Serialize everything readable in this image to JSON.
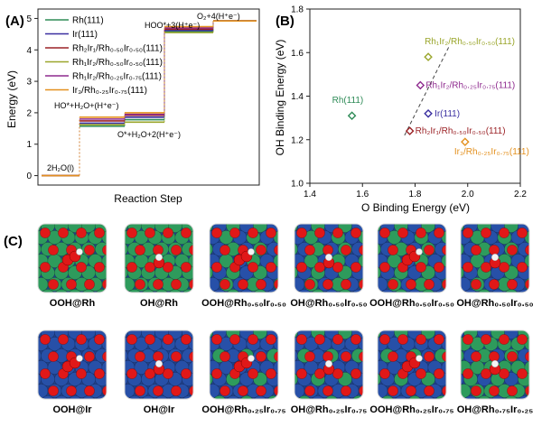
{
  "chart_data": [
    {
      "panel": "(A)",
      "type": "line",
      "title": "",
      "xlabel": "Reaction Step",
      "ylabel": "Energy (eV)",
      "ylim": [
        -0.3,
        5.3
      ],
      "yticks": [
        "0",
        "1",
        "2",
        "3",
        "4",
        "5"
      ],
      "steps": [
        "2H2O(l)",
        "HO*+H2O+(H+e-)",
        "O*+H2O+2(H+e-)",
        "HOO*+3(H+e-)",
        "O2+4(H+e-)"
      ],
      "step_labels": {
        "s0": "2H₂O(l)",
        "s1": "HO*+H₂O+(H⁺e⁻)",
        "s2": "O*+H₂O+2(H⁺e⁻)",
        "s3": "HOO*+3(H⁺e⁻)",
        "s4": "O₂+4(H⁺e⁻)"
      },
      "legend": [
        {
          "text": "Rh(111)",
          "color": "#2e8b57"
        },
        {
          "text": "Ir(111)",
          "color": "#3a2fa0"
        },
        {
          "text": "Rh₂Ir₁/Rh₀.₅₀Ir₀.₅₀(111)",
          "color": "#9b2226"
        },
        {
          "text": "Rh₁Ir₂/Rh₀.₅₀Ir₀.₅₀(111)",
          "color": "#9aa62b"
        },
        {
          "text": "Rh₁Ir₂/Rh₀.₂₅Ir₀.₇₅(111)",
          "color": "#8e2a8e"
        },
        {
          "text": "Ir₃/Rh₀.₂₅Ir₀.₇₅(111)",
          "color": "#e3901e"
        }
      ],
      "series": [
        {
          "name": "Rh(111)",
          "color": "#2e8b57",
          "values": [
            0,
            1.57,
            1.78,
            4.58,
            4.92
          ]
        },
        {
          "name": "Ir(111)",
          "color": "#3a2fa0",
          "values": [
            0,
            1.67,
            1.86,
            4.62,
            4.92
          ]
        },
        {
          "name": "Rh2Ir1/Rh0.50Ir0.50(111)",
          "color": "#9b2226",
          "values": [
            0,
            1.74,
            1.92,
            4.66,
            4.92
          ]
        },
        {
          "name": "Rh1Ir2/Rh0.50Ir0.50(111)",
          "color": "#9aa62b",
          "values": [
            0,
            1.62,
            1.7,
            4.55,
            4.92
          ]
        },
        {
          "name": "Rh1Ir2/Rh0.25Ir0.75(111)",
          "color": "#8e2a8e",
          "values": [
            0,
            1.8,
            1.95,
            4.7,
            4.92
          ]
        },
        {
          "name": "Ir3/Rh0.25Ir0.75(111)",
          "color": "#e3901e",
          "values": [
            0,
            1.86,
            2.0,
            4.74,
            4.92
          ]
        }
      ]
    },
    {
      "panel": "(B)",
      "type": "scatter",
      "title": "",
      "xlabel": "O Binding Energy (eV)",
      "ylabel": "OH Binding Energy (eV)",
      "xlim": [
        1.4,
        2.2
      ],
      "ylim": [
        1.0,
        1.8
      ],
      "xticks": [
        "1.4",
        "1.6",
        "1.8",
        "2.0",
        "2.2"
      ],
      "yticks": [
        "1.0",
        "1.2",
        "1.4",
        "1.6",
        "1.8"
      ],
      "points": [
        {
          "name": "Rh(111)",
          "x": 1.56,
          "y": 1.31,
          "color": "#2e8b57"
        },
        {
          "name": "Rh₁Ir₂/Rh₀.₅₀Ir₀.₅₀(111)",
          "x": 1.85,
          "y": 1.58,
          "color": "#9aa62b"
        },
        {
          "name": "Rh₁Ir₂/Rh₀.₂₅Ir₀.₇₅(111)",
          "x": 1.82,
          "y": 1.45,
          "color": "#8e2a8e"
        },
        {
          "name": "Ir(111)",
          "x": 1.85,
          "y": 1.32,
          "color": "#3a2fa0"
        },
        {
          "name": "Rh₂Ir₁/Rh₀.₅₀Ir₀.₅₀(111)",
          "x": 1.78,
          "y": 1.24,
          "color": "#9b2226"
        },
        {
          "name": "Ir₃/Rh₀.₂₅Ir₀.₇₅(111)",
          "x": 1.99,
          "y": 1.19,
          "color": "#e3901e"
        }
      ],
      "trendline": {
        "x": [
          1.76,
          1.93
        ],
        "y": [
          1.22,
          1.63
        ]
      }
    }
  ],
  "panel_c": {
    "label": "(C)",
    "tiles": [
      {
        "label": "OOH@Rh",
        "lattice": "rh",
        "adsorbate": "OOH"
      },
      {
        "label": "OH@Rh",
        "lattice": "rh",
        "adsorbate": "OH"
      },
      {
        "label": "OOH@Rh₀.₅₀Ir₀.₅₀",
        "lattice": "mix50",
        "adsorbate": "OOH"
      },
      {
        "label": "OH@Rh₀.₅₀Ir₀.₅₀",
        "lattice": "mix50",
        "adsorbate": "OH"
      },
      {
        "label": "OOH@Rh₀.₅₀Ir₀.₅₀",
        "lattice": "mix50",
        "adsorbate": "OOH"
      },
      {
        "label": "OH@Rh₀.₅₀Ir₀.₅₀",
        "lattice": "mix50",
        "adsorbate": "OH"
      },
      {
        "label": "OOH@Ir",
        "lattice": "ir",
        "adsorbate": "OOH"
      },
      {
        "label": "OH@Ir",
        "lattice": "ir",
        "adsorbate": "OH"
      },
      {
        "label": "OOH@Rh₀.₂₅Ir₀.₇₅",
        "lattice": "mix25",
        "adsorbate": "OOH"
      },
      {
        "label": "OH@Rh₀.₂₅Ir₀.₇₅",
        "lattice": "mix25",
        "adsorbate": "OH"
      },
      {
        "label": "OOH@Rh₀.₂₅Ir₀.₇₅",
        "lattice": "mix25",
        "adsorbate": "OOH"
      },
      {
        "label": "OH@Rh₀.₇₅Ir₀.₂₅",
        "lattice": "mix75",
        "adsorbate": "OH"
      }
    ]
  },
  "colors": {
    "rh_atom": "#2e9b5c",
    "ir_atom": "#2750a8",
    "oxygen": "#e01818",
    "hydrogen": "#f4f4f4",
    "axis": "#222222"
  }
}
